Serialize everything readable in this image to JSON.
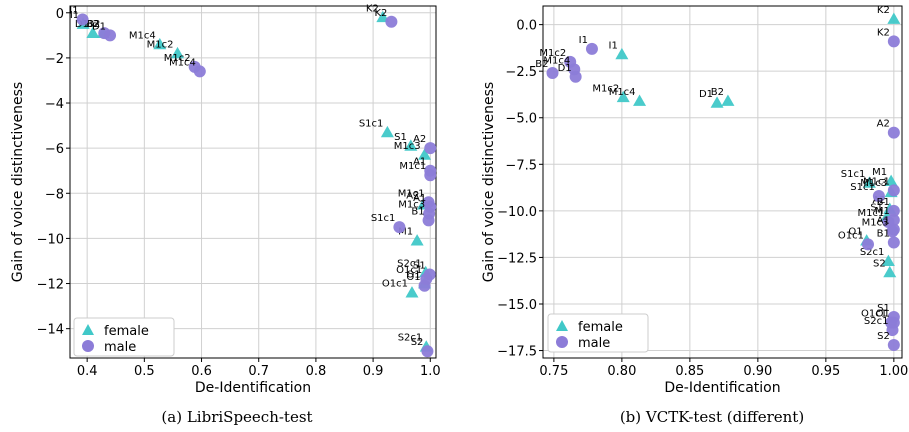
{
  "colors": {
    "female": "#40c8c8",
    "male": "#8c7cd8"
  },
  "chart_data": [
    {
      "type": "scatter",
      "caption": "(a) LibriSpeech-test",
      "xlabel": "De-Identification",
      "ylabel": "Gain of voice distinctiveness",
      "xlim": [
        0.37,
        1.01
      ],
      "ylim": [
        -15.3,
        0.3
      ],
      "xticks": [
        0.4,
        0.5,
        0.6,
        0.7,
        0.8,
        0.9,
        1.0
      ],
      "ytick_values": [
        0,
        -2,
        -4,
        -6,
        -8,
        -10,
        -12,
        -14
      ],
      "ytick_labels": [
        "0",
        "−2",
        "−4",
        "−6",
        "−8",
        "−10",
        "−12",
        "−14"
      ],
      "grid": true,
      "legend": {
        "placement": "bottom-left",
        "entries": [
          "female",
          "male"
        ]
      },
      "series": [
        {
          "name": "female",
          "marker": "triangle",
          "points": [
            {
              "label": "I1",
              "x": 0.393,
              "y": -0.5
            },
            {
              "label": "D1",
              "x": 0.41,
              "y": -0.9
            },
            {
              "label": "B2",
              "x": 0.428,
              "y": -0.9
            },
            {
              "label": "M1c4",
              "x": 0.527,
              "y": -1.4
            },
            {
              "label": "M1c2",
              "x": 0.558,
              "y": -1.8
            },
            {
              "label": "K2",
              "x": 0.917,
              "y": -0.2
            },
            {
              "label": "S1c1",
              "x": 0.925,
              "y": -5.3
            },
            {
              "label": "S1",
              "x": 0.966,
              "y": -5.9
            },
            {
              "label": "M1c3",
              "x": 0.99,
              "y": -6.3
            },
            {
              "label": "A2",
              "x": 0.988,
              "y": -8.5
            },
            {
              "label": "M1",
              "x": 0.977,
              "y": -10.1
            },
            {
              "label": "S2c1",
              "x": 0.992,
              "y": -11.5
            },
            {
              "label": "O1c1",
              "x": 0.968,
              "y": -12.4
            },
            {
              "label": "O1",
              "x": 0.99,
              "y": -12.0
            },
            {
              "label": "S2c1",
              "x": 0.993,
              "y": -14.8
            }
          ]
        },
        {
          "name": "male",
          "marker": "circle",
          "points": [
            {
              "label": "I1",
              "x": 0.392,
              "y": -0.3
            },
            {
              "label": "B2",
              "x": 0.43,
              "y": -0.9
            },
            {
              "label": "D1",
              "x": 0.44,
              "y": -1.0
            },
            {
              "label": "M1c2",
              "x": 0.588,
              "y": -2.4
            },
            {
              "label": "M1c4",
              "x": 0.597,
              "y": -2.6
            },
            {
              "label": "K2",
              "x": 0.932,
              "y": -0.4
            },
            {
              "label": "A2",
              "x": 1.0,
              "y": -6.0
            },
            {
              "label": "A1",
              "x": 1.0,
              "y": -7.0
            },
            {
              "label": "M1c1",
              "x": 1.0,
              "y": -7.2
            },
            {
              "label": "M1c1",
              "x": 0.997,
              "y": -8.4
            },
            {
              "label": "A1",
              "x": 1.0,
              "y": -8.6
            },
            {
              "label": "M1c3",
              "x": 0.998,
              "y": -8.9
            },
            {
              "label": "B1",
              "x": 0.997,
              "y": -9.2
            },
            {
              "label": "S1c1",
              "x": 0.946,
              "y": -9.5
            },
            {
              "label": "S1",
              "x": 0.999,
              "y": -11.6
            },
            {
              "label": "O1c1",
              "x": 0.993,
              "y": -11.8
            },
            {
              "label": "O1",
              "x": 0.99,
              "y": -12.1
            },
            {
              "label": "S2",
              "x": 0.995,
              "y": -15.0
            }
          ]
        }
      ]
    },
    {
      "type": "scatter",
      "caption": "(b) VCTK-test (different)",
      "xlabel": "De-Identification",
      "ylabel": "Gain of voice distinctiveness",
      "xlim": [
        0.742,
        1.006
      ],
      "ylim": [
        -17.9,
        1.0
      ],
      "xticks": [
        0.75,
        0.8,
        0.85,
        0.9,
        0.95,
        1.0
      ],
      "xtick_labels": [
        "0.75",
        "0.80",
        "0.85",
        "0.90",
        "0.95",
        "1.00"
      ],
      "ytick_values": [
        0.0,
        -2.5,
        -5.0,
        -7.5,
        -10.0,
        -12.5,
        -15.0,
        -17.5
      ],
      "ytick_labels": [
        "0.0",
        "−2.5",
        "−5.0",
        "−7.5",
        "−10.0",
        "−12.5",
        "−15.0",
        "−17.5"
      ],
      "grid": true,
      "legend": {
        "placement": "bottom-left",
        "entries": [
          "female",
          "male"
        ]
      },
      "series": [
        {
          "name": "female",
          "marker": "triangle",
          "points": [
            {
              "label": "I1",
              "x": 0.8,
              "y": -1.6
            },
            {
              "label": "M1c2",
              "x": 0.801,
              "y": -3.9
            },
            {
              "label": "M1c4",
              "x": 0.813,
              "y": -4.1
            },
            {
              "label": "D1",
              "x": 0.87,
              "y": -4.2
            },
            {
              "label": "B2",
              "x": 0.878,
              "y": -4.1
            },
            {
              "label": "K2",
              "x": 1.0,
              "y": 0.3
            },
            {
              "label": "S1c1",
              "x": 0.982,
              "y": -8.5
            },
            {
              "label": "M1",
              "x": 0.998,
              "y": -8.4
            },
            {
              "label": "M1c3",
              "x": 0.998,
              "y": -9.0
            },
            {
              "label": "A2",
              "x": 0.997,
              "y": -9.9
            },
            {
              "label": "S1",
              "x": 0.995,
              "y": -10.3
            },
            {
              "label": "O1",
              "x": 0.98,
              "y": -11.6
            },
            {
              "label": "S2c1",
              "x": 0.996,
              "y": -12.7
            },
            {
              "label": "S2",
              "x": 0.997,
              "y": -13.3
            }
          ]
        },
        {
          "name": "male",
          "marker": "circle",
          "points": [
            {
              "label": "I1",
              "x": 0.778,
              "y": -1.3
            },
            {
              "label": "M1c2",
              "x": 0.762,
              "y": -2.0
            },
            {
              "label": "B2",
              "x": 0.749,
              "y": -2.6
            },
            {
              "label": "M1c4",
              "x": 0.765,
              "y": -2.4
            },
            {
              "label": "D1",
              "x": 0.766,
              "y": -2.8
            },
            {
              "label": "K2",
              "x": 1.0,
              "y": -0.9
            },
            {
              "label": "A2",
              "x": 1.0,
              "y": -5.8
            },
            {
              "label": "M1c1",
              "x": 1.0,
              "y": -8.9
            },
            {
              "label": "S1c1",
              "x": 0.989,
              "y": -9.2
            },
            {
              "label": "B1",
              "x": 1.0,
              "y": -10.0
            },
            {
              "label": "M1",
              "x": 1.0,
              "y": -10.5
            },
            {
              "label": "M1c1",
              "x": 0.996,
              "y": -10.6
            },
            {
              "label": "A1",
              "x": 1.0,
              "y": -11.0
            },
            {
              "label": "M1c3",
              "x": 0.999,
              "y": -11.1
            },
            {
              "label": "O1c1",
              "x": 0.981,
              "y": -11.8
            },
            {
              "label": "B1",
              "x": 1.0,
              "y": -11.7
            },
            {
              "label": "S1",
              "x": 1.0,
              "y": -15.7
            },
            {
              "label": "O1",
              "x": 1.0,
              "y": -16.0
            },
            {
              "label": "O1c1",
              "x": 0.998,
              "y": -16.0
            },
            {
              "label": "S2c1",
              "x": 0.999,
              "y": -16.4
            },
            {
              "label": "S2",
              "x": 1.0,
              "y": -17.2
            }
          ]
        }
      ]
    }
  ]
}
